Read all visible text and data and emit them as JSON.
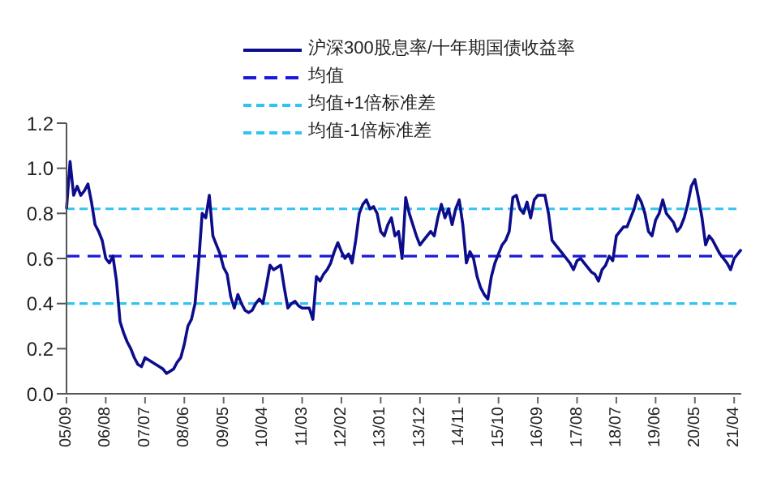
{
  "chart_data": {
    "type": "line",
    "categories": [
      "05/09",
      null,
      null,
      null,
      null,
      null,
      null,
      null,
      null,
      null,
      null,
      "06/08",
      null,
      null,
      null,
      null,
      null,
      null,
      null,
      null,
      null,
      null,
      "07/07",
      null,
      null,
      null,
      null,
      null,
      null,
      null,
      null,
      null,
      null,
      "08/06",
      null,
      null,
      null,
      null,
      null,
      null,
      null,
      null,
      null,
      null,
      "09/05",
      null,
      null,
      null,
      null,
      null,
      null,
      null,
      null,
      null,
      null,
      "10/04",
      null,
      null,
      null,
      null,
      null,
      null,
      null,
      null,
      null,
      null,
      "11/03",
      null,
      null,
      null,
      null,
      null,
      null,
      null,
      null,
      null,
      null,
      "12/02",
      null,
      null,
      null,
      null,
      null,
      null,
      null,
      null,
      null,
      null,
      "13/01",
      null,
      null,
      null,
      null,
      null,
      null,
      null,
      null,
      null,
      null,
      "13/12",
      null,
      null,
      null,
      null,
      null,
      null,
      null,
      null,
      null,
      null,
      "14/11",
      null,
      null,
      null,
      null,
      null,
      null,
      null,
      null,
      null,
      null,
      "15/10",
      null,
      null,
      null,
      null,
      null,
      null,
      null,
      null,
      null,
      null,
      "16/09",
      null,
      null,
      null,
      null,
      null,
      null,
      null,
      null,
      null,
      null,
      "17/08",
      null,
      null,
      null,
      null,
      null,
      null,
      null,
      null,
      null,
      null,
      "18/07",
      null,
      null,
      null,
      null,
      null,
      null,
      null,
      null,
      null,
      null,
      "19/06",
      null,
      null,
      null,
      null,
      null,
      null,
      null,
      null,
      null,
      null,
      "20/05",
      null,
      null,
      null,
      null,
      null,
      null,
      null,
      null,
      null,
      null,
      "21/04",
      null,
      null
    ],
    "series": [
      {
        "name": "沪深300股息率/十年期国债收益率",
        "color": "#0d0d8c",
        "values": [
          0.82,
          1.03,
          0.88,
          0.92,
          0.88,
          0.9,
          0.93,
          0.85,
          0.75,
          0.72,
          0.68,
          0.6,
          0.58,
          0.61,
          0.5,
          0.32,
          0.27,
          0.23,
          0.2,
          0.16,
          0.13,
          0.12,
          0.16,
          0.15,
          0.14,
          0.13,
          0.12,
          0.11,
          0.09,
          0.1,
          0.11,
          0.14,
          0.16,
          0.22,
          0.3,
          0.33,
          0.4,
          0.58,
          0.8,
          0.78,
          0.88,
          0.7,
          0.66,
          0.62,
          0.56,
          0.53,
          0.43,
          0.38,
          0.44,
          0.4,
          0.37,
          0.36,
          0.37,
          0.4,
          0.42,
          0.4,
          0.48,
          0.57,
          0.55,
          0.56,
          0.57,
          0.47,
          0.38,
          0.4,
          0.41,
          0.39,
          0.38,
          0.38,
          0.38,
          0.33,
          0.52,
          0.5,
          0.53,
          0.55,
          0.58,
          0.63,
          0.67,
          0.63,
          0.6,
          0.62,
          0.58,
          0.68,
          0.8,
          0.84,
          0.86,
          0.82,
          0.83,
          0.8,
          0.72,
          0.7,
          0.75,
          0.78,
          0.7,
          0.72,
          0.6,
          0.87,
          0.8,
          0.75,
          0.7,
          0.66,
          0.68,
          0.7,
          0.72,
          0.7,
          0.78,
          0.84,
          0.78,
          0.82,
          0.75,
          0.82,
          0.86,
          0.75,
          0.58,
          0.63,
          0.6,
          0.52,
          0.47,
          0.44,
          0.42,
          0.52,
          0.58,
          0.62,
          0.66,
          0.68,
          0.72,
          0.87,
          0.88,
          0.82,
          0.8,
          0.85,
          0.78,
          0.86,
          0.88,
          0.88,
          0.88,
          0.8,
          0.68,
          0.66,
          0.64,
          0.62,
          0.6,
          0.58,
          0.55,
          0.59,
          0.6,
          0.58,
          0.56,
          0.54,
          0.53,
          0.5,
          0.55,
          0.57,
          0.61,
          0.59,
          0.7,
          0.72,
          0.74,
          0.74,
          0.78,
          0.82,
          0.88,
          0.85,
          0.8,
          0.72,
          0.7,
          0.77,
          0.8,
          0.86,
          0.8,
          0.78,
          0.76,
          0.72,
          0.74,
          0.78,
          0.84,
          0.92,
          0.95,
          0.87,
          0.78,
          0.66,
          0.7,
          0.68,
          0.65,
          0.62,
          0.6,
          0.58,
          0.55,
          0.6,
          0.62,
          0.64
        ]
      }
    ],
    "ylim": [
      0,
      1.2
    ],
    "yticks": [
      {
        "value": 0,
        "label": "0.0"
      },
      0.2,
      0.4,
      0.6,
      0.8,
      {
        "value": 1,
        "label": "1.0"
      },
      1.2
    ],
    "ref_lines": [
      {
        "axis": "y",
        "value": 0.61,
        "label": "均值",
        "color": "#1a1adb",
        "line_style": "dashed"
      },
      {
        "axis": "y",
        "value": 0.82,
        "label": "均值+1倍标准差",
        "color": "#33c3f0",
        "line_style": "dashed"
      },
      {
        "axis": "y",
        "value": 0.4,
        "label": "均值-1倍标准差",
        "color": "#33c3f0",
        "line_style": "dashed"
      }
    ],
    "legend": "top"
  }
}
